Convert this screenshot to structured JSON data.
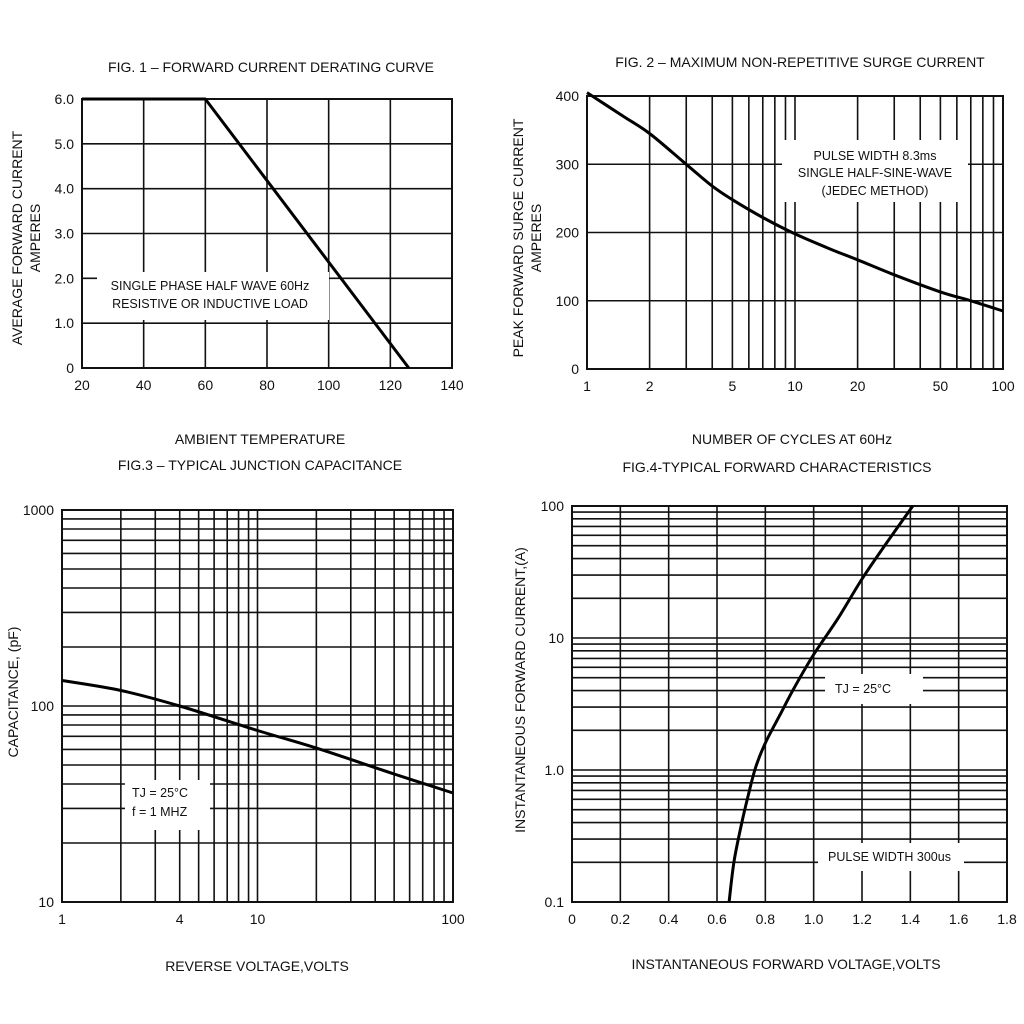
{
  "chart_data": [
    {
      "id": "fig1",
      "type": "line",
      "title": "FIG. 1 – FORWARD CURRENT DERATING CURVE",
      "xlabel": "AMBIENT TEMPERATURE",
      "ylabel": "AVERAGE FORWARD CURRENT",
      "ylabel2": "AMPERES",
      "xscale": "linear",
      "yscale": "linear",
      "xlim": [
        20,
        140
      ],
      "ylim": [
        0,
        6
      ],
      "x_ticks": [
        20,
        40,
        60,
        80,
        100,
        120,
        140
      ],
      "x_tick_labels": [
        "20",
        "40",
        "60",
        "80",
        "100",
        "120",
        "140"
      ],
      "y_ticks": [
        0,
        1,
        2,
        3,
        4,
        5,
        6
      ],
      "y_tick_labels": [
        "0",
        "1.0",
        "2.0",
        "3.0",
        "4.0",
        "5.0",
        "6.0"
      ],
      "grid": true,
      "annotations": [
        "SINGLE PHASE HALF WAVE 60Hz",
        "RESISTIVE OR INDUCTIVE LOAD"
      ],
      "series": [
        {
          "name": "derating",
          "x": [
            20,
            60,
            126
          ],
          "y": [
            6.0,
            6.0,
            0.0
          ]
        }
      ]
    },
    {
      "id": "fig2",
      "type": "line",
      "title": "FIG. 2 – MAXIMUM NON-REPETITIVE SURGE CURRENT",
      "xlabel": "NUMBER OF CYCLES AT 60Hz",
      "ylabel": "PEAK FORWARD SURGE CURRENT",
      "ylabel2": "AMPERES",
      "xscale": "log",
      "yscale": "linear",
      "xlim": [
        1,
        100
      ],
      "ylim": [
        0,
        400
      ],
      "x_ticks": [
        1,
        2,
        5,
        10,
        20,
        50,
        100
      ],
      "x_tick_labels": [
        "1",
        "2",
        "5",
        "10",
        "20",
        "50",
        "100"
      ],
      "y_ticks": [
        0,
        100,
        200,
        300,
        400
      ],
      "y_tick_labels": [
        "0",
        "100",
        "200",
        "300",
        "400"
      ],
      "grid": true,
      "annotations": [
        "PULSE WIDTH 8.3ms",
        "SINGLE HALF-SINE-WAVE",
        "(JEDEC METHOD)"
      ],
      "series": [
        {
          "name": "surge",
          "x": [
            1,
            1.5,
            2,
            3,
            4,
            5,
            7,
            10,
            15,
            20,
            30,
            50,
            70,
            100
          ],
          "y": [
            405,
            370,
            345,
            300,
            268,
            248,
            222,
            198,
            175,
            160,
            138,
            113,
            100,
            85
          ]
        }
      ]
    },
    {
      "id": "fig3",
      "type": "line",
      "title": "FIG.3 – TYPICAL JUNCTION CAPACITANCE",
      "xlabel": "REVERSE VOLTAGE,VOLTS",
      "ylabel": "CAPACITANCE, (pF)",
      "xscale": "log",
      "yscale": "log",
      "xlim": [
        1,
        100
      ],
      "ylim": [
        10,
        1000
      ],
      "x_ticks": [
        1,
        4,
        10,
        100
      ],
      "x_tick_labels": [
        "1",
        "4",
        "10",
        "100"
      ],
      "y_ticks": [
        10,
        100,
        1000
      ],
      "y_tick_labels": [
        "10",
        "100",
        "1000"
      ],
      "grid": true,
      "annotations": [
        "TJ = 25°C",
        "f = 1 MHZ"
      ],
      "series": [
        {
          "name": "capacitance",
          "x": [
            1,
            2,
            4,
            10,
            20,
            50,
            100
          ],
          "y": [
            135,
            120,
            100,
            75,
            61,
            45,
            36
          ]
        }
      ]
    },
    {
      "id": "fig4",
      "type": "line",
      "title": "FIG.4-TYPICAL FORWARD CHARACTERISTICS",
      "xlabel": "INSTANTANEOUS FORWARD VOLTAGE,VOLTS",
      "ylabel": "INSTANTANEOUS FORWARD CURRENT,(A)",
      "xscale": "linear",
      "yscale": "log",
      "xlim": [
        0,
        1.8
      ],
      "ylim": [
        0.1,
        100
      ],
      "x_ticks": [
        0,
        0.2,
        0.4,
        0.6,
        0.8,
        1.0,
        1.2,
        1.4,
        1.6,
        1.8
      ],
      "x_tick_labels": [
        "0",
        "0.2",
        "0.4",
        "0.6",
        "0.8",
        "1.0",
        "1.2",
        "1.4",
        "1.6",
        "1.8"
      ],
      "y_ticks": [
        0.1,
        1,
        10,
        100
      ],
      "y_tick_labels": [
        "0.1",
        "1.0",
        "10",
        "100"
      ],
      "grid": true,
      "annotations": [
        "TJ = 25°C",
        "PULSE WIDTH 300us"
      ],
      "series": [
        {
          "name": "forward",
          "x": [
            0.65,
            0.67,
            0.7,
            0.73,
            0.76,
            0.8,
            0.86,
            0.92,
            1.0,
            1.1,
            1.2,
            1.3,
            1.41
          ],
          "y": [
            0.1,
            0.2,
            0.38,
            0.65,
            1.05,
            1.6,
            2.6,
            4.2,
            7.5,
            14,
            28,
            52,
            100
          ]
        }
      ]
    }
  ]
}
